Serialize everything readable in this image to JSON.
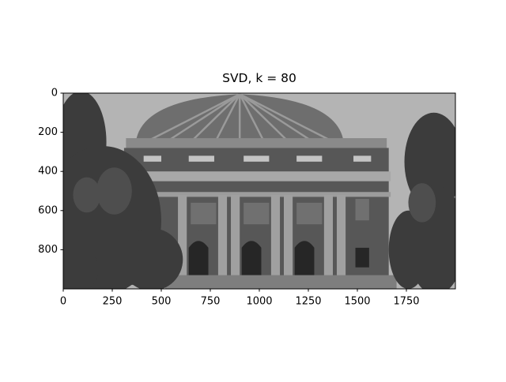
{
  "chart_data": {
    "type": "image",
    "title": "SVD, k = 80",
    "xlim": [
      0,
      2000
    ],
    "ylim": [
      1000,
      0
    ],
    "xticks": [
      0,
      250,
      500,
      750,
      1000,
      1250,
      1500,
      1750
    ],
    "yticks": [
      0,
      200,
      400,
      600,
      800
    ]
  }
}
